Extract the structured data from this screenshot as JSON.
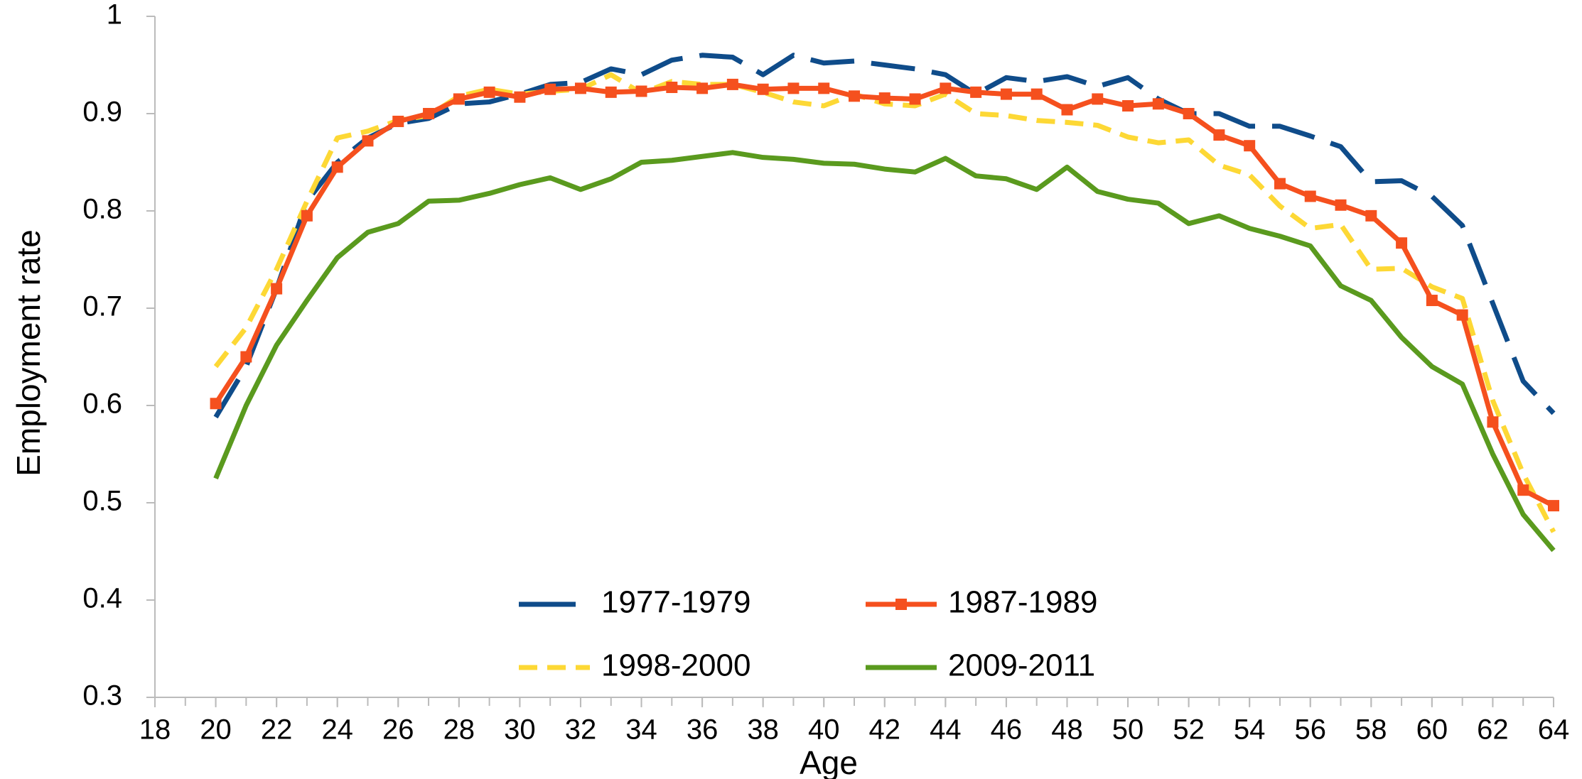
{
  "chart_data": {
    "type": "line",
    "x_label": "Age",
    "y_label": "Employment rate",
    "x": [
      20,
      21,
      22,
      23,
      24,
      25,
      26,
      27,
      28,
      29,
      30,
      31,
      32,
      33,
      34,
      35,
      36,
      37,
      38,
      39,
      40,
      41,
      42,
      43,
      44,
      45,
      46,
      47,
      48,
      49,
      50,
      51,
      52,
      53,
      54,
      55,
      56,
      57,
      58,
      59,
      60,
      61,
      62,
      63,
      64
    ],
    "xlim": [
      18,
      64
    ],
    "xticks": [
      18,
      20,
      22,
      24,
      26,
      28,
      30,
      32,
      34,
      36,
      38,
      40,
      42,
      44,
      46,
      48,
      50,
      52,
      54,
      56,
      58,
      60,
      62,
      64
    ],
    "ylim": [
      0.3,
      1
    ],
    "yticks": [
      0.3,
      0.4,
      0.5,
      0.6,
      0.7,
      0.8,
      0.9,
      1
    ],
    "grid": false,
    "legend_position": "bottom-center",
    "series": [
      {
        "name": "1977-1979",
        "color": "#0f4c8a",
        "style": "long-dash",
        "marker": "none",
        "values": [
          0.588,
          0.64,
          0.72,
          0.81,
          0.85,
          0.875,
          0.89,
          0.895,
          0.91,
          0.912,
          0.92,
          0.93,
          0.932,
          0.946,
          0.94,
          0.955,
          0.96,
          0.958,
          0.94,
          0.96,
          0.952,
          0.954,
          0.95,
          0.946,
          0.94,
          0.92,
          0.937,
          0.933,
          0.938,
          0.928,
          0.937,
          0.915,
          0.9,
          0.9,
          0.887,
          0.887,
          0.877,
          0.866,
          0.83,
          0.831,
          0.815,
          0.785,
          0.705,
          0.625,
          0.592
        ]
      },
      {
        "name": "1987-1989",
        "color": "#f5501e",
        "style": "solid",
        "marker": "square",
        "values": [
          0.602,
          0.65,
          0.72,
          0.795,
          0.845,
          0.872,
          0.892,
          0.9,
          0.915,
          0.922,
          0.917,
          0.925,
          0.926,
          0.922,
          0.923,
          0.927,
          0.926,
          0.93,
          0.925,
          0.926,
          0.926,
          0.918,
          0.916,
          0.915,
          0.926,
          0.922,
          0.92,
          0.92,
          0.904,
          0.915,
          0.908,
          0.91,
          0.9,
          0.878,
          0.867,
          0.828,
          0.815,
          0.806,
          0.795,
          0.767,
          0.708,
          0.693,
          0.583,
          0.513,
          0.497
        ]
      },
      {
        "name": "1998-2000",
        "color": "#fdd835",
        "style": "short-dash",
        "marker": "none",
        "values": [
          0.64,
          0.68,
          0.74,
          0.81,
          0.875,
          0.882,
          0.893,
          0.898,
          0.918,
          0.925,
          0.92,
          0.923,
          0.925,
          0.94,
          0.921,
          0.933,
          0.93,
          0.93,
          0.922,
          0.912,
          0.908,
          0.92,
          0.91,
          0.908,
          0.92,
          0.9,
          0.898,
          0.893,
          0.891,
          0.888,
          0.876,
          0.87,
          0.873,
          0.847,
          0.837,
          0.805,
          0.782,
          0.786,
          0.74,
          0.741,
          0.722,
          0.71,
          0.605,
          0.53,
          0.47
        ]
      },
      {
        "name": "2009-2011",
        "color": "#5a9a1e",
        "style": "solid",
        "marker": "none",
        "values": [
          0.525,
          0.6,
          0.662,
          0.708,
          0.752,
          0.778,
          0.787,
          0.81,
          0.811,
          0.818,
          0.827,
          0.834,
          0.822,
          0.833,
          0.85,
          0.852,
          0.856,
          0.86,
          0.855,
          0.853,
          0.849,
          0.848,
          0.843,
          0.84,
          0.854,
          0.836,
          0.833,
          0.822,
          0.845,
          0.82,
          0.812,
          0.808,
          0.787,
          0.795,
          0.782,
          0.774,
          0.764,
          0.723,
          0.708,
          0.67,
          0.64,
          0.622,
          0.55,
          0.488,
          0.451
        ]
      }
    ]
  }
}
